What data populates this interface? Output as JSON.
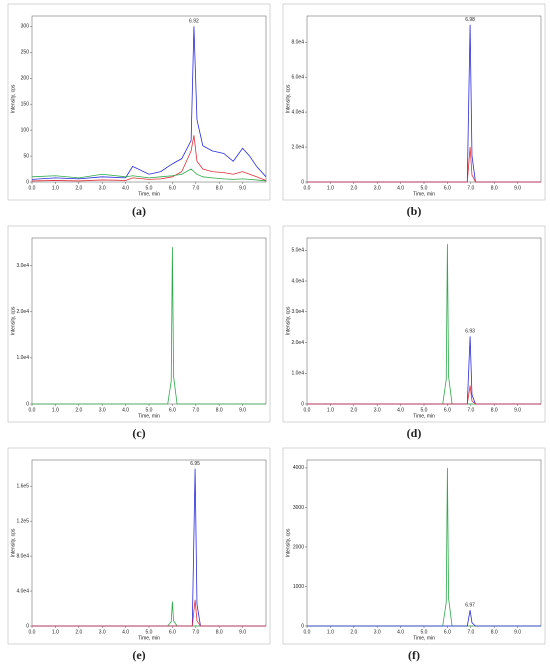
{
  "chart_data": [
    {
      "type": "line",
      "label": "(a)",
      "xlabel": "Time, min",
      "ylabel": "Intensity, cps",
      "x": [
        0,
        1,
        2,
        3,
        4,
        4.3,
        5,
        5.5,
        6,
        6.4,
        6.8,
        6.92,
        7.05,
        7.3,
        7.7,
        8.2,
        8.6,
        9,
        9.3,
        9.6,
        10
      ],
      "xlim": [
        0,
        10
      ],
      "xticks": [
        {
          "value": 0,
          "label": "0.0"
        },
        {
          "value": 1,
          "label": "1.0"
        },
        {
          "value": 2,
          "label": "2.0"
        },
        {
          "value": 3,
          "label": "3.0"
        },
        {
          "value": 4,
          "label": "4.0"
        },
        {
          "value": 5,
          "label": "5.0"
        },
        {
          "value": 6,
          "label": "6.0"
        },
        {
          "value": 7,
          "label": "7.0"
        },
        {
          "value": 8,
          "label": "8.0"
        },
        {
          "value": 9,
          "label": "9.0"
        }
      ],
      "ylim": [
        0,
        320
      ],
      "yticks": [
        0,
        50,
        100,
        150,
        200,
        250,
        300
      ],
      "series": [
        {
          "color": "#2a2ae0",
          "values": [
            5,
            8,
            6,
            10,
            8,
            30,
            15,
            20,
            35,
            45,
            80,
            300,
            120,
            70,
            60,
            55,
            40,
            65,
            50,
            30,
            10
          ]
        },
        {
          "color": "#e0303a",
          "values": [
            2,
            3,
            2,
            4,
            3,
            8,
            5,
            6,
            10,
            20,
            60,
            90,
            40,
            25,
            20,
            18,
            15,
            20,
            15,
            10,
            3
          ]
        },
        {
          "color": "#2ea84a",
          "values": [
            10,
            12,
            8,
            15,
            10,
            12,
            8,
            10,
            12,
            15,
            25,
            20,
            15,
            10,
            8,
            6,
            5,
            6,
            5,
            4,
            2
          ]
        }
      ],
      "annotations": [
        {
          "text": "6.92",
          "x": 6.92,
          "y": 300
        }
      ]
    },
    {
      "type": "line",
      "label": "(b)",
      "xlabel": "Time, min",
      "ylabel": "Intensity, cps",
      "x": [
        0,
        5.8,
        5.95,
        6.0,
        6.05,
        6.2,
        6.85,
        6.97,
        7.05,
        7.2,
        10
      ],
      "xlim": [
        0,
        10
      ],
      "xticks": [
        {
          "value": 0,
          "label": "0.0"
        },
        {
          "value": 1,
          "label": "1.0"
        },
        {
          "value": 2,
          "label": "2.0"
        },
        {
          "value": 3,
          "label": "3.0"
        },
        {
          "value": 4,
          "label": "4.0"
        },
        {
          "value": 5,
          "label": "5.0"
        },
        {
          "value": 6,
          "label": "6.0"
        },
        {
          "value": 7,
          "label": "7.0"
        },
        {
          "value": 8,
          "label": "8.0"
        },
        {
          "value": 9,
          "label": "9.0"
        }
      ],
      "ylim": [
        0,
        95000
      ],
      "yticks": [
        0,
        {
          "value": 20000,
          "label": "2.0e4"
        },
        {
          "value": 40000,
          "label": "4.0e4"
        },
        {
          "value": 60000,
          "label": "6.0e4"
        },
        {
          "value": 80000,
          "label": "8.0e4"
        }
      ],
      "series": [
        {
          "color": "#2a2ae0",
          "values": [
            0,
            0,
            0,
            0,
            0,
            0,
            0,
            90000,
            15000,
            0,
            0
          ]
        },
        {
          "color": "#e0303a",
          "values": [
            0,
            0,
            0,
            0,
            0,
            0,
            0,
            20000,
            4000,
            0,
            0
          ]
        }
      ],
      "annotations": [
        {
          "text": "6.98",
          "x": 6.97,
          "y": 90000
        }
      ]
    },
    {
      "type": "line",
      "label": "(c)",
      "xlabel": "Time, min",
      "ylabel": "Intensity, cps",
      "x": [
        0,
        5.8,
        5.95,
        6.0,
        6.05,
        6.2,
        6.85,
        6.97,
        7.05,
        7.2,
        10
      ],
      "xlim": [
        0,
        10
      ],
      "xticks": [
        {
          "value": 0,
          "label": "0.0"
        },
        {
          "value": 1,
          "label": "1.0"
        },
        {
          "value": 2,
          "label": "2.0"
        },
        {
          "value": 3,
          "label": "3.0"
        },
        {
          "value": 4,
          "label": "4.0"
        },
        {
          "value": 5,
          "label": "5.0"
        },
        {
          "value": 6,
          "label": "6.0"
        },
        {
          "value": 7,
          "label": "7.0"
        },
        {
          "value": 8,
          "label": "8.0"
        },
        {
          "value": 9,
          "label": "9.0"
        }
      ],
      "ylim": [
        0,
        36000
      ],
      "yticks": [
        0,
        {
          "value": 10000,
          "label": "1.0e4"
        },
        {
          "value": 20000,
          "label": "2.0e4"
        },
        {
          "value": 30000,
          "label": "3.0e4"
        }
      ],
      "series": [
        {
          "color": "#2ea84a",
          "values": [
            0,
            0,
            5000,
            34000,
            6000,
            0,
            0,
            0,
            0,
            0,
            0
          ]
        }
      ],
      "annotations": []
    },
    {
      "type": "line",
      "label": "(d)",
      "xlabel": "Time, min",
      "ylabel": "Intensity, cps",
      "x": [
        0,
        5.8,
        5.95,
        6.0,
        6.05,
        6.2,
        6.85,
        6.97,
        7.05,
        7.2,
        10
      ],
      "xlim": [
        0,
        10
      ],
      "xticks": [
        {
          "value": 0,
          "label": "0.0"
        },
        {
          "value": 1,
          "label": "1.0"
        },
        {
          "value": 2,
          "label": "2.0"
        },
        {
          "value": 3,
          "label": "3.0"
        },
        {
          "value": 4,
          "label": "4.0"
        },
        {
          "value": 5,
          "label": "5.0"
        },
        {
          "value": 6,
          "label": "6.0"
        },
        {
          "value": 7,
          "label": "7.0"
        },
        {
          "value": 8,
          "label": "8.0"
        },
        {
          "value": 9,
          "label": "9.0"
        }
      ],
      "ylim": [
        0,
        54000
      ],
      "yticks": [
        0,
        {
          "value": 10000,
          "label": "1.0e4"
        },
        {
          "value": 20000,
          "label": "2.0e4"
        },
        {
          "value": 30000,
          "label": "3.0e4"
        },
        {
          "value": 40000,
          "label": "4.0e4"
        },
        {
          "value": 50000,
          "label": "5.0e4"
        }
      ],
      "series": [
        {
          "color": "#2ea84a",
          "values": [
            0,
            0,
            8000,
            52000,
            9000,
            0,
            0,
            0,
            0,
            0,
            0
          ]
        },
        {
          "color": "#2a2ae0",
          "values": [
            0,
            0,
            0,
            0,
            0,
            0,
            0,
            22000,
            3000,
            0,
            0
          ]
        },
        {
          "color": "#e0303a",
          "values": [
            0,
            0,
            0,
            0,
            0,
            0,
            0,
            6000,
            1000,
            0,
            0
          ]
        }
      ],
      "annotations": [
        {
          "text": "6.93",
          "x": 6.97,
          "y": 22000
        }
      ]
    },
    {
      "type": "line",
      "label": "(e)",
      "xlabel": "Time, min",
      "ylabel": "Intensity, cps",
      "x": [
        0,
        5.8,
        5.95,
        6.0,
        6.05,
        6.2,
        6.85,
        6.97,
        7.05,
        7.2,
        10
      ],
      "xlim": [
        0,
        10
      ],
      "xticks": [
        {
          "value": 0,
          "label": "0.0"
        },
        {
          "value": 1,
          "label": "1.0"
        },
        {
          "value": 2,
          "label": "2.0"
        },
        {
          "value": 3,
          "label": "3.0"
        },
        {
          "value": 4,
          "label": "4.0"
        },
        {
          "value": 5,
          "label": "5.0"
        },
        {
          "value": 6,
          "label": "6.0"
        },
        {
          "value": 7,
          "label": "7.0"
        },
        {
          "value": 8,
          "label": "8.0"
        },
        {
          "value": 9,
          "label": "9.0"
        }
      ],
      "ylim": [
        0,
        190000
      ],
      "yticks": [
        0,
        {
          "value": 40000,
          "label": "4.0e4"
        },
        {
          "value": 80000,
          "label": "8.0e4"
        },
        {
          "value": 120000,
          "label": "1.2e5"
        },
        {
          "value": 160000,
          "label": "1.6e5"
        }
      ],
      "series": [
        {
          "color": "#2ea84a",
          "values": [
            0,
            0,
            5000,
            28000,
            6000,
            0,
            0,
            0,
            0,
            0,
            0
          ]
        },
        {
          "color": "#2a2ae0",
          "values": [
            0,
            0,
            0,
            0,
            0,
            0,
            0,
            180000,
            25000,
            0,
            0
          ]
        },
        {
          "color": "#e0303a",
          "values": [
            0,
            0,
            0,
            0,
            0,
            0,
            0,
            30000,
            6000,
            0,
            0
          ]
        }
      ],
      "annotations": [
        {
          "text": "6.95",
          "x": 6.97,
          "y": 180000
        }
      ]
    },
    {
      "type": "line",
      "label": "(f)",
      "xlabel": "Time, min",
      "ylabel": "Intensity, cps",
      "x": [
        0,
        5.8,
        5.95,
        6.0,
        6.05,
        6.2,
        6.85,
        6.97,
        7.05,
        7.2,
        10
      ],
      "xlim": [
        0,
        10
      ],
      "xticks": [
        {
          "value": 0,
          "label": "0.0"
        },
        {
          "value": 1,
          "label": "1.0"
        },
        {
          "value": 2,
          "label": "2.0"
        },
        {
          "value": 3,
          "label": "3.0"
        },
        {
          "value": 4,
          "label": "4.0"
        },
        {
          "value": 5,
          "label": "5.0"
        },
        {
          "value": 6,
          "label": "6.0"
        },
        {
          "value": 7,
          "label": "7.0"
        },
        {
          "value": 8,
          "label": "8.0"
        },
        {
          "value": 9,
          "label": "9.0"
        }
      ],
      "ylim": [
        0,
        4200
      ],
      "yticks": [
        0,
        1000,
        2000,
        3000,
        4000
      ],
      "series": [
        {
          "color": "#2ea84a",
          "values": [
            0,
            0,
            600,
            4000,
            700,
            0,
            0,
            0,
            0,
            0,
            0
          ]
        },
        {
          "color": "#2a2ae0",
          "values": [
            0,
            0,
            0,
            0,
            0,
            0,
            0,
            400,
            80,
            0,
            0
          ]
        }
      ],
      "annotations": [
        {
          "text": "6.97",
          "x": 6.97,
          "y": 400
        }
      ]
    }
  ]
}
